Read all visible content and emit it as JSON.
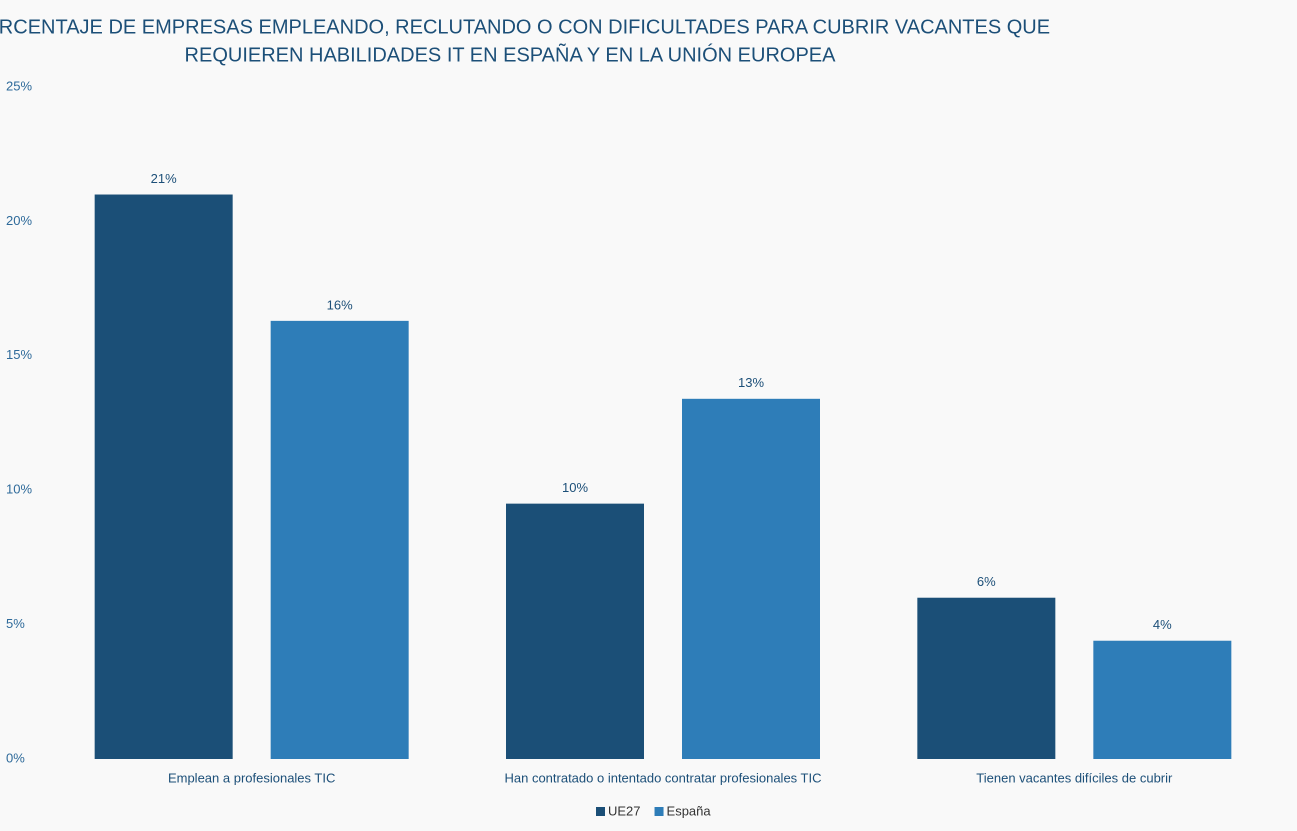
{
  "chart_data": {
    "type": "bar",
    "title": [
      "PORCENTAJE DE EMPRESAS EMPLEANDO, RECLUTANDO O CON DIFICULTADES PARA CUBRIR VACANTES QUE",
      "REQUIEREN HABILIDADES IT EN ESPAÑA Y EN LA UNIÓN EUROPEA"
    ],
    "categories": [
      "Emplean a profesionales TIC",
      "Han contratado o intentado contratar profesionales TIC",
      "Tienen vacantes difíciles de cubrir"
    ],
    "series": [
      {
        "name": "UE27",
        "color": "#1b4f77",
        "values": [
          21,
          9.5,
          6.0
        ],
        "value_labels": [
          "21%",
          "10%",
          "6%"
        ]
      },
      {
        "name": "España",
        "color": "#2e7db8",
        "values": [
          16.3,
          13.4,
          4.4
        ],
        "value_labels": [
          "16%",
          "13%",
          "4%"
        ]
      }
    ],
    "ylim": [
      0,
      25
    ],
    "yticks": [
      {
        "value": 0,
        "label": "0%"
      },
      {
        "value": 5,
        "label": "5%"
      },
      {
        "value": 10,
        "label": "10%"
      },
      {
        "value": 15,
        "label": "15%"
      },
      {
        "value": 20,
        "label": "20%"
      },
      {
        "value": 25,
        "label": "25%"
      }
    ],
    "grid": false,
    "legend": "bottom"
  }
}
